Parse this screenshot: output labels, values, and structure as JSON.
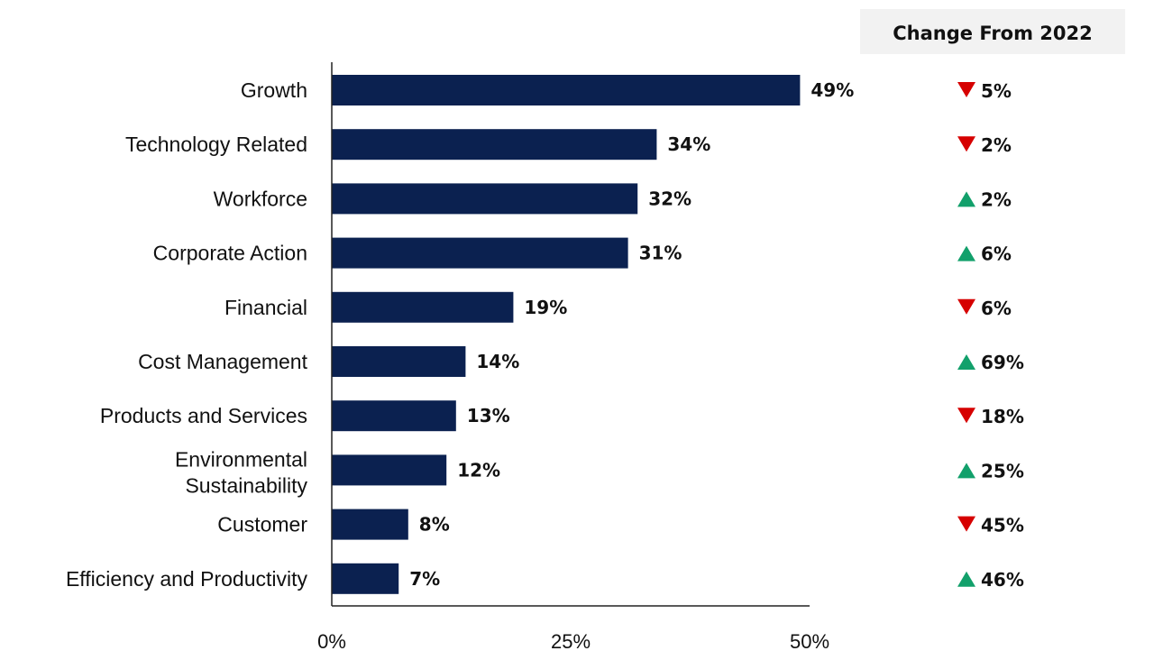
{
  "chart_data": {
    "type": "bar",
    "orientation": "horizontal",
    "categories": [
      "Growth",
      "Technology Related",
      "Workforce",
      "Corporate Action",
      "Financial",
      "Cost Management",
      "Products and Services",
      "Environmental Sustainability",
      "Customer",
      "Efficiency and Productivity"
    ],
    "values": [
      49,
      34,
      32,
      31,
      19,
      14,
      13,
      12,
      8,
      7
    ],
    "value_labels": [
      "49%",
      "34%",
      "32%",
      "31%",
      "19%",
      "14%",
      "13%",
      "12%",
      "8%",
      "7%"
    ],
    "xlim": [
      0,
      50
    ],
    "x_ticks": [
      "0%",
      "25%",
      "50%"
    ],
    "grid": false,
    "bar_color": "#0b2150",
    "change_header": "Change From 2022",
    "changes": [
      {
        "direction": "down",
        "label": "5%"
      },
      {
        "direction": "down",
        "label": "2%"
      },
      {
        "direction": "up",
        "label": "2%"
      },
      {
        "direction": "up",
        "label": "6%"
      },
      {
        "direction": "down",
        "label": "6%"
      },
      {
        "direction": "up",
        "label": "69%"
      },
      {
        "direction": "down",
        "label": "18%"
      },
      {
        "direction": "up",
        "label": "25%"
      },
      {
        "direction": "down",
        "label": "45%"
      },
      {
        "direction": "up",
        "label": "46%"
      }
    ],
    "colors": {
      "up": "#12a06b",
      "down": "#d60000",
      "header_bg": "#f2f2f2",
      "axis": "#222222"
    }
  }
}
